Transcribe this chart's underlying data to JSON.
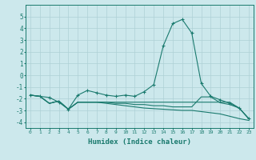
{
  "x": [
    0,
    1,
    2,
    3,
    4,
    5,
    6,
    7,
    8,
    9,
    10,
    11,
    12,
    13,
    14,
    15,
    16,
    17,
    18,
    19,
    20,
    21,
    22,
    23
  ],
  "line1": [
    -1.7,
    -1.8,
    -1.9,
    -2.3,
    -2.9,
    -1.7,
    -1.3,
    -1.5,
    -1.7,
    -1.8,
    -1.7,
    -1.8,
    -1.4,
    -0.8,
    2.5,
    4.4,
    4.75,
    3.6,
    -0.7,
    -1.8,
    -2.1,
    -2.4,
    -2.8,
    -3.7
  ],
  "line2": [
    -1.7,
    -1.8,
    -2.4,
    -2.2,
    -2.9,
    -2.3,
    -2.3,
    -2.3,
    -2.3,
    -2.4,
    -2.4,
    -2.5,
    -2.5,
    -2.6,
    -2.6,
    -2.7,
    -2.7,
    -2.7,
    -1.85,
    -1.85,
    -2.35,
    -2.5,
    -2.8,
    -3.7
  ],
  "line3": [
    -1.7,
    -1.8,
    -2.4,
    -2.2,
    -2.9,
    -2.3,
    -2.3,
    -2.3,
    -2.4,
    -2.5,
    -2.6,
    -2.7,
    -2.8,
    -2.85,
    -2.9,
    -2.95,
    -3.0,
    -3.0,
    -3.1,
    -3.2,
    -3.3,
    -3.5,
    -3.7,
    -3.85
  ],
  "line4": [
    -1.7,
    -1.8,
    -2.4,
    -2.2,
    -2.9,
    -2.3,
    -2.3,
    -2.3,
    -2.3,
    -2.3,
    -2.3,
    -2.3,
    -2.3,
    -2.3,
    -2.3,
    -2.3,
    -2.3,
    -2.3,
    -2.3,
    -2.3,
    -2.3,
    -2.3,
    -2.8,
    -3.7
  ],
  "color": "#1a7a6e",
  "bg_color": "#cce8ec",
  "grid_color": "#aed0d6",
  "xlabel": "Humidex (Indice chaleur)",
  "ylim": [
    -4.5,
    6
  ],
  "xlim": [
    -0.5,
    23.5
  ],
  "yticks": [
    -4,
    -3,
    -2,
    -1,
    0,
    1,
    2,
    3,
    4,
    5
  ],
  "xticks": [
    0,
    1,
    2,
    3,
    4,
    5,
    6,
    7,
    8,
    9,
    10,
    11,
    12,
    13,
    14,
    15,
    16,
    17,
    18,
    19,
    20,
    21,
    22,
    23
  ]
}
